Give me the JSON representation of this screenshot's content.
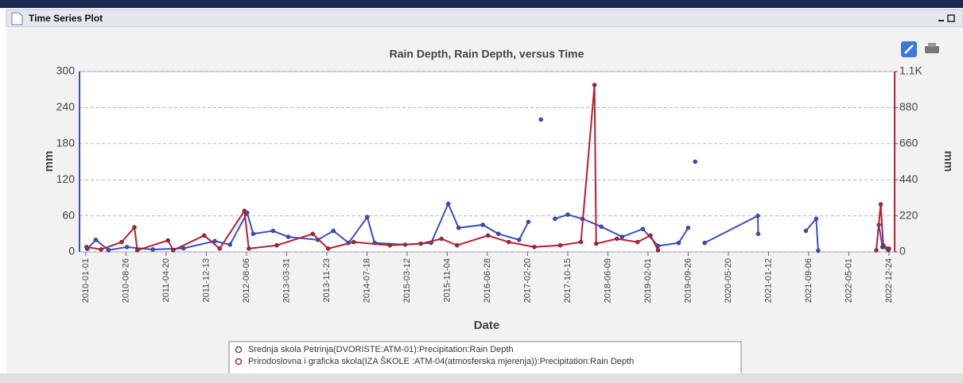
{
  "window": {
    "title": "Time Series Plot"
  },
  "chart_data": {
    "type": "line",
    "title": "Rain Depth, Rain Depth, versus Time",
    "xlabel": "Date",
    "ylabel": "mm",
    "y2label": "mm",
    "xlim": [
      "2009-11-25",
      "2023-01-26"
    ],
    "xticks": [
      "2010-01-01",
      "2010-08-26",
      "2011-04-20",
      "2011-12-13",
      "2012-08-06",
      "2013-03-31",
      "2013-11-23",
      "2014-07-18",
      "2015-03-12",
      "2015-11-04",
      "2016-06-28",
      "2017-02-20",
      "2017-10-15",
      "2018-06-09",
      "2019-02-01",
      "2019-09-26",
      "2020-05-20",
      "2021-01-12",
      "2021-09-06",
      "2022-05-01",
      "2022-12-24"
    ],
    "ylim": [
      0,
      300
    ],
    "yticks": [
      0,
      60,
      120,
      180,
      240,
      300
    ],
    "y2lim": [
      0,
      1100
    ],
    "y2ticks": [
      0,
      220,
      440,
      660,
      880,
      {
        "value": 1100,
        "label": "1.1K"
      }
    ],
    "grid": true,
    "series": [
      {
        "name": "Srednja skola Petrinja(DVORISTE:ATM-01):Precipitation:Rain Depth",
        "color": "#3a4fc4",
        "axis": "y",
        "x": [
          "2010-01-10",
          "2010-03-01",
          "2010-05-15",
          "2010-09-01",
          "2011-02-01",
          "2011-08-01",
          "2012-02-01",
          "2012-05-01",
          "2012-08-10",
          "2012-09-15",
          "2013-01-10",
          "2013-04-10",
          "2013-10-01",
          "2014-01-01",
          "2014-04-01",
          "2014-07-20",
          "2014-09-01",
          "2015-03-01",
          "2015-08-01",
          "2015-11-10",
          "2016-01-10",
          "2016-06-01",
          "2016-09-01",
          "2017-01-01",
          "2017-02-25",
          "2017-04-01",
          "2017-05-10",
          "2017-06-20",
          "2017-08-01",
          "2017-10-15",
          "2018-01-10",
          "2018-05-01",
          "2018-09-01",
          "2019-01-01",
          "2019-04-01",
          "2019-08-01",
          "2019-09-26",
          "2019-10-20",
          "2019-11-06",
          "2019-12-10",
          "2020-01-01",
          "2020-11-10",
          "2020-11-12",
          "2021-06-01",
          "2021-08-20",
          "2021-10-20",
          "2021-11-01",
          "2022-06-01",
          "2022-10-25",
          "2022-11-15",
          "2022-12-20"
        ],
        "values": [
          5,
          20,
          3,
          8,
          4,
          6,
          18,
          12,
          65,
          30,
          35,
          25,
          20,
          35,
          15,
          58,
          15,
          12,
          15,
          80,
          40,
          45,
          30,
          20,
          50,
          null,
          220,
          null,
          55,
          62,
          55,
          42,
          25,
          38,
          10,
          15,
          40,
          null,
          150,
          null,
          15,
          60,
          30,
          null,
          35,
          55,
          2,
          null,
          45,
          8,
          3
        ]
      },
      {
        "name": "Prirodoslovna i graficka skola(IZA ŠKOLE :ATM-04(atmosferska mjerenja)):Precipitation:Rain Depth",
        "color": "#b81f2f",
        "axis": "y2",
        "x": [
          "2010-01-05",
          "2010-04-01",
          "2010-08-01",
          "2010-10-15",
          "2010-11-01",
          "2011-05-01",
          "2011-06-01",
          "2011-12-01",
          "2012-03-01",
          "2012-07-25",
          "2012-08-20",
          "2013-02-01",
          "2013-09-01",
          "2013-12-01",
          "2014-05-01",
          "2014-12-01",
          "2015-06-01",
          "2015-10-01",
          "2016-01-01",
          "2016-07-01",
          "2016-11-01",
          "2017-04-01",
          "2017-09-01",
          "2018-01-01",
          "2018-03-22",
          "2018-04-01",
          "2018-08-01",
          "2018-12-01",
          "2019-02-15",
          "2019-04-01",
          "2020-06-01",
          "2022-10-10",
          "2022-11-05",
          "2022-11-20",
          "2022-12-24"
        ],
        "values": [
          30,
          15,
          60,
          150,
          10,
          70,
          10,
          100,
          20,
          250,
          20,
          40,
          110,
          20,
          60,
          40,
          50,
          80,
          40,
          100,
          60,
          30,
          40,
          60,
          1018,
          50,
          80,
          60,
          100,
          10,
          null,
          10,
          290,
          40,
          20
        ]
      }
    ]
  }
}
